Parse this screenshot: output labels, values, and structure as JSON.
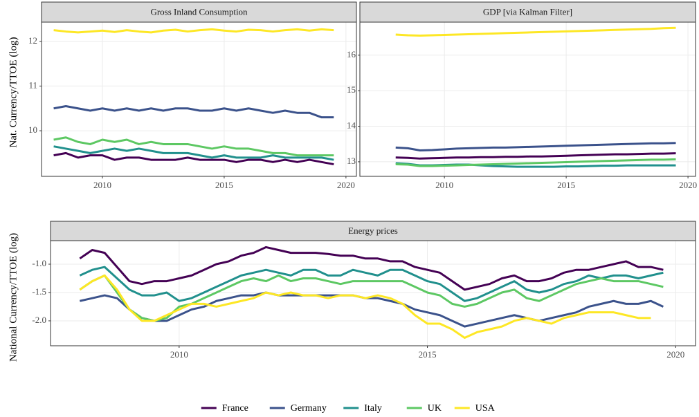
{
  "chart_data": [
    {
      "type": "line",
      "title": "Gross Inland Consumption",
      "y_label": "Nat. Currency/TTOE (log)",
      "x": [
        2008,
        2008.5,
        2009,
        2009.5,
        2010,
        2010.5,
        2011,
        2011.5,
        2012,
        2012.5,
        2013,
        2013.5,
        2014,
        2014.5,
        2015,
        2015.5,
        2016,
        2016.5,
        2017,
        2017.5,
        2018,
        2018.5,
        2019,
        2019.5
      ],
      "series": [
        {
          "name": "France",
          "color": "#440154",
          "values": [
            9.45,
            9.5,
            9.4,
            9.45,
            9.45,
            9.35,
            9.4,
            9.4,
            9.35,
            9.35,
            9.35,
            9.4,
            9.35,
            9.35,
            9.35,
            9.3,
            9.35,
            9.35,
            9.3,
            9.35,
            9.3,
            9.35,
            9.3,
            9.25
          ]
        },
        {
          "name": "Germany",
          "color": "#3b528b",
          "values": [
            10.5,
            10.55,
            10.5,
            10.45,
            10.5,
            10.45,
            10.5,
            10.45,
            10.5,
            10.45,
            10.5,
            10.5,
            10.45,
            10.45,
            10.5,
            10.45,
            10.5,
            10.45,
            10.4,
            10.45,
            10.4,
            10.4,
            10.3,
            10.3
          ]
        },
        {
          "name": "Italy",
          "color": "#21908d",
          "values": [
            9.65,
            9.6,
            9.55,
            9.5,
            9.55,
            9.6,
            9.55,
            9.6,
            9.55,
            9.5,
            9.5,
            9.5,
            9.45,
            9.4,
            9.45,
            9.4,
            9.4,
            9.4,
            9.45,
            9.4,
            9.4,
            9.4,
            9.4,
            9.35
          ]
        },
        {
          "name": "UK",
          "color": "#5dc863",
          "values": [
            9.8,
            9.85,
            9.75,
            9.7,
            9.8,
            9.75,
            9.8,
            9.7,
            9.75,
            9.7,
            9.7,
            9.7,
            9.65,
            9.6,
            9.65,
            9.6,
            9.6,
            9.55,
            9.5,
            9.5,
            9.45,
            9.45,
            9.45,
            9.45
          ]
        },
        {
          "name": "USA",
          "color": "#fde725",
          "values": [
            12.25,
            12.22,
            12.2,
            12.22,
            12.24,
            12.21,
            12.25,
            12.22,
            12.2,
            12.24,
            12.26,
            12.22,
            12.25,
            12.27,
            12.24,
            12.22,
            12.26,
            12.25,
            12.22,
            12.25,
            12.27,
            12.24,
            12.27,
            12.25
          ]
        }
      ],
      "xlim": [
        2007.5,
        2020.43
      ],
      "ylim": [
        8.98,
        12.43
      ],
      "xticks": [
        2010,
        2015,
        2020
      ],
      "yticks": [
        10,
        11,
        12
      ],
      "grid": true
    },
    {
      "type": "line",
      "title": "GDP [via Kalman Filter]",
      "x": [
        2008,
        2008.5,
        2009,
        2009.5,
        2010,
        2010.5,
        2011,
        2011.5,
        2012,
        2012.5,
        2013,
        2013.5,
        2014,
        2014.5,
        2015,
        2015.5,
        2016,
        2016.5,
        2017,
        2017.5,
        2018,
        2018.5,
        2019,
        2019.5
      ],
      "series": [
        {
          "name": "France",
          "color": "#440154",
          "values": [
            13.12,
            13.11,
            13.09,
            13.1,
            13.11,
            13.12,
            13.12,
            13.13,
            13.13,
            13.14,
            13.14,
            13.15,
            13.15,
            13.16,
            13.17,
            13.18,
            13.19,
            13.2,
            13.21,
            13.21,
            13.22,
            13.23,
            13.23,
            13.24
          ]
        },
        {
          "name": "Germany",
          "color": "#3b528b",
          "values": [
            13.4,
            13.38,
            13.32,
            13.33,
            13.35,
            13.37,
            13.38,
            13.39,
            13.4,
            13.4,
            13.41,
            13.42,
            13.43,
            13.44,
            13.45,
            13.46,
            13.47,
            13.48,
            13.49,
            13.5,
            13.51,
            13.52,
            13.52,
            13.53
          ]
        },
        {
          "name": "Italy",
          "color": "#21908d",
          "values": [
            12.96,
            12.94,
            12.9,
            12.9,
            12.91,
            12.92,
            12.92,
            12.9,
            12.88,
            12.87,
            12.86,
            12.86,
            12.86,
            12.86,
            12.87,
            12.87,
            12.88,
            12.89,
            12.89,
            12.9,
            12.9,
            12.9,
            12.9,
            12.9
          ]
        },
        {
          "name": "UK",
          "color": "#5dc863",
          "values": [
            12.93,
            12.92,
            12.88,
            12.88,
            12.89,
            12.9,
            12.91,
            12.92,
            12.93,
            12.94,
            12.95,
            12.96,
            12.97,
            12.98,
            12.99,
            13,
            13.01,
            13.02,
            13.03,
            13.04,
            13.05,
            13.06,
            13.06,
            13.07
          ]
        },
        {
          "name": "USA",
          "color": "#fde725",
          "values": [
            16.58,
            16.56,
            16.55,
            16.56,
            16.57,
            16.58,
            16.59,
            16.6,
            16.61,
            16.62,
            16.63,
            16.64,
            16.65,
            16.66,
            16.67,
            16.68,
            16.69,
            16.7,
            16.71,
            16.72,
            16.73,
            16.74,
            16.76,
            16.77
          ]
        }
      ],
      "xlim": [
        2006.53,
        2020.31
      ],
      "ylim": [
        12.59,
        16.93
      ],
      "xticks": [
        2010,
        2015,
        2020
      ],
      "yticks": [
        13,
        14,
        15,
        16
      ],
      "grid": true
    },
    {
      "type": "line",
      "title": "Energy prices",
      "y_label": "National Currency/TTOE (log)",
      "x": [
        2008,
        2008.25,
        2008.5,
        2008.75,
        2009,
        2009.25,
        2009.5,
        2009.75,
        2010,
        2010.25,
        2010.5,
        2010.75,
        2011,
        2011.25,
        2011.5,
        2011.75,
        2012,
        2012.25,
        2012.5,
        2012.75,
        2013,
        2013.25,
        2013.5,
        2013.75,
        2014,
        2014.25,
        2014.5,
        2014.75,
        2015,
        2015.25,
        2015.5,
        2015.75,
        2016,
        2016.25,
        2016.5,
        2016.75,
        2017,
        2017.25,
        2017.5,
        2017.75,
        2018,
        2018.25,
        2018.5,
        2018.75,
        2019,
        2019.25,
        2019.5,
        2019.75
      ],
      "series": [
        {
          "name": "France",
          "color": "#440154",
          "values": [
            -0.9,
            -0.75,
            -0.8,
            -1.05,
            -1.3,
            -1.35,
            -1.3,
            -1.3,
            -1.25,
            -1.2,
            -1.1,
            -1.0,
            -0.95,
            -0.85,
            -0.8,
            -0.7,
            -0.75,
            -0.8,
            -0.8,
            -0.8,
            -0.82,
            -0.85,
            -0.85,
            -0.9,
            -0.9,
            -0.95,
            -0.95,
            -1.05,
            -1.1,
            -1.15,
            -1.3,
            -1.45,
            -1.4,
            -1.35,
            -1.25,
            -1.2,
            -1.3,
            -1.3,
            -1.25,
            -1.15,
            -1.1,
            -1.1,
            -1.05,
            -1.0,
            -0.95,
            -1.05,
            -1.05,
            -1.1
          ]
        },
        {
          "name": "Germany",
          "color": "#3b528b",
          "values": [
            -1.65,
            -1.6,
            -1.55,
            -1.6,
            -1.8,
            -1.95,
            -2.0,
            -2.0,
            -1.9,
            -1.8,
            -1.75,
            -1.65,
            -1.6,
            -1.55,
            -1.55,
            -1.5,
            -1.55,
            -1.55,
            -1.55,
            -1.55,
            -1.55,
            -1.55,
            -1.55,
            -1.6,
            -1.6,
            -1.65,
            -1.7,
            -1.8,
            -1.85,
            -1.9,
            -2.0,
            -2.1,
            -2.05,
            -2.0,
            -1.95,
            -1.9,
            -1.95,
            -2.0,
            -1.95,
            -1.9,
            -1.85,
            -1.75,
            -1.7,
            -1.65,
            -1.7,
            -1.7,
            -1.65,
            -1.75
          ]
        },
        {
          "name": "Italy",
          "color": "#21908d",
          "values": [
            -1.2,
            -1.1,
            -1.05,
            -1.25,
            -1.45,
            -1.55,
            -1.55,
            -1.5,
            -1.65,
            -1.6,
            -1.5,
            -1.4,
            -1.3,
            -1.2,
            -1.15,
            -1.1,
            -1.15,
            -1.2,
            -1.1,
            -1.1,
            -1.2,
            -1.2,
            -1.1,
            -1.15,
            -1.2,
            -1.1,
            -1.1,
            -1.2,
            -1.3,
            -1.35,
            -1.5,
            -1.65,
            -1.6,
            -1.5,
            -1.4,
            -1.3,
            -1.45,
            -1.5,
            -1.45,
            -1.35,
            -1.3,
            -1.2,
            -1.25,
            -1.2,
            -1.2,
            -1.25,
            -1.2,
            -1.15
          ]
        },
        {
          "name": "UK",
          "color": "#5dc863",
          "values": [
            -1.45,
            -1.3,
            -1.2,
            -1.5,
            -1.8,
            -1.95,
            -2.0,
            -1.95,
            -1.75,
            -1.7,
            -1.6,
            -1.5,
            -1.4,
            -1.3,
            -1.25,
            -1.3,
            -1.2,
            -1.3,
            -1.25,
            -1.25,
            -1.3,
            -1.35,
            -1.3,
            -1.3,
            -1.3,
            -1.3,
            -1.3,
            -1.4,
            -1.5,
            -1.55,
            -1.7,
            -1.75,
            -1.7,
            -1.6,
            -1.5,
            -1.45,
            -1.6,
            -1.65,
            -1.55,
            -1.45,
            -1.35,
            -1.3,
            -1.25,
            -1.3,
            -1.3,
            -1.3,
            -1.35,
            -1.4
          ]
        },
        {
          "name": "USA",
          "color": "#fde725",
          "values": [
            -1.45,
            -1.3,
            -1.2,
            -1.45,
            -1.8,
            -2.0,
            -2.0,
            -1.9,
            -1.8,
            -1.7,
            -1.7,
            -1.75,
            -1.7,
            -1.65,
            -1.6,
            -1.5,
            -1.55,
            -1.5,
            -1.55,
            -1.55,
            -1.6,
            -1.55,
            -1.55,
            -1.6,
            -1.55,
            -1.6,
            -1.7,
            -1.9,
            -2.05,
            -2.05,
            -2.15,
            -2.3,
            -2.2,
            -2.15,
            -2.1,
            -2.0,
            -1.95,
            -2.0,
            -2.05,
            -1.95,
            -1.9,
            -1.85,
            -1.85,
            -1.85,
            -1.9,
            -1.95,
            -1.95,
            null
          ]
        }
      ],
      "xlim": [
        2007.41,
        2020.4
      ],
      "ylim": [
        -2.44,
        -0.585
      ],
      "xticks": [
        2010,
        2015,
        2020
      ],
      "yticks": [
        {
          "value": -1,
          "label": "-1.0"
        },
        -1.5,
        {
          "value": -2,
          "label": "-2.0"
        }
      ],
      "grid": true
    }
  ]
}
